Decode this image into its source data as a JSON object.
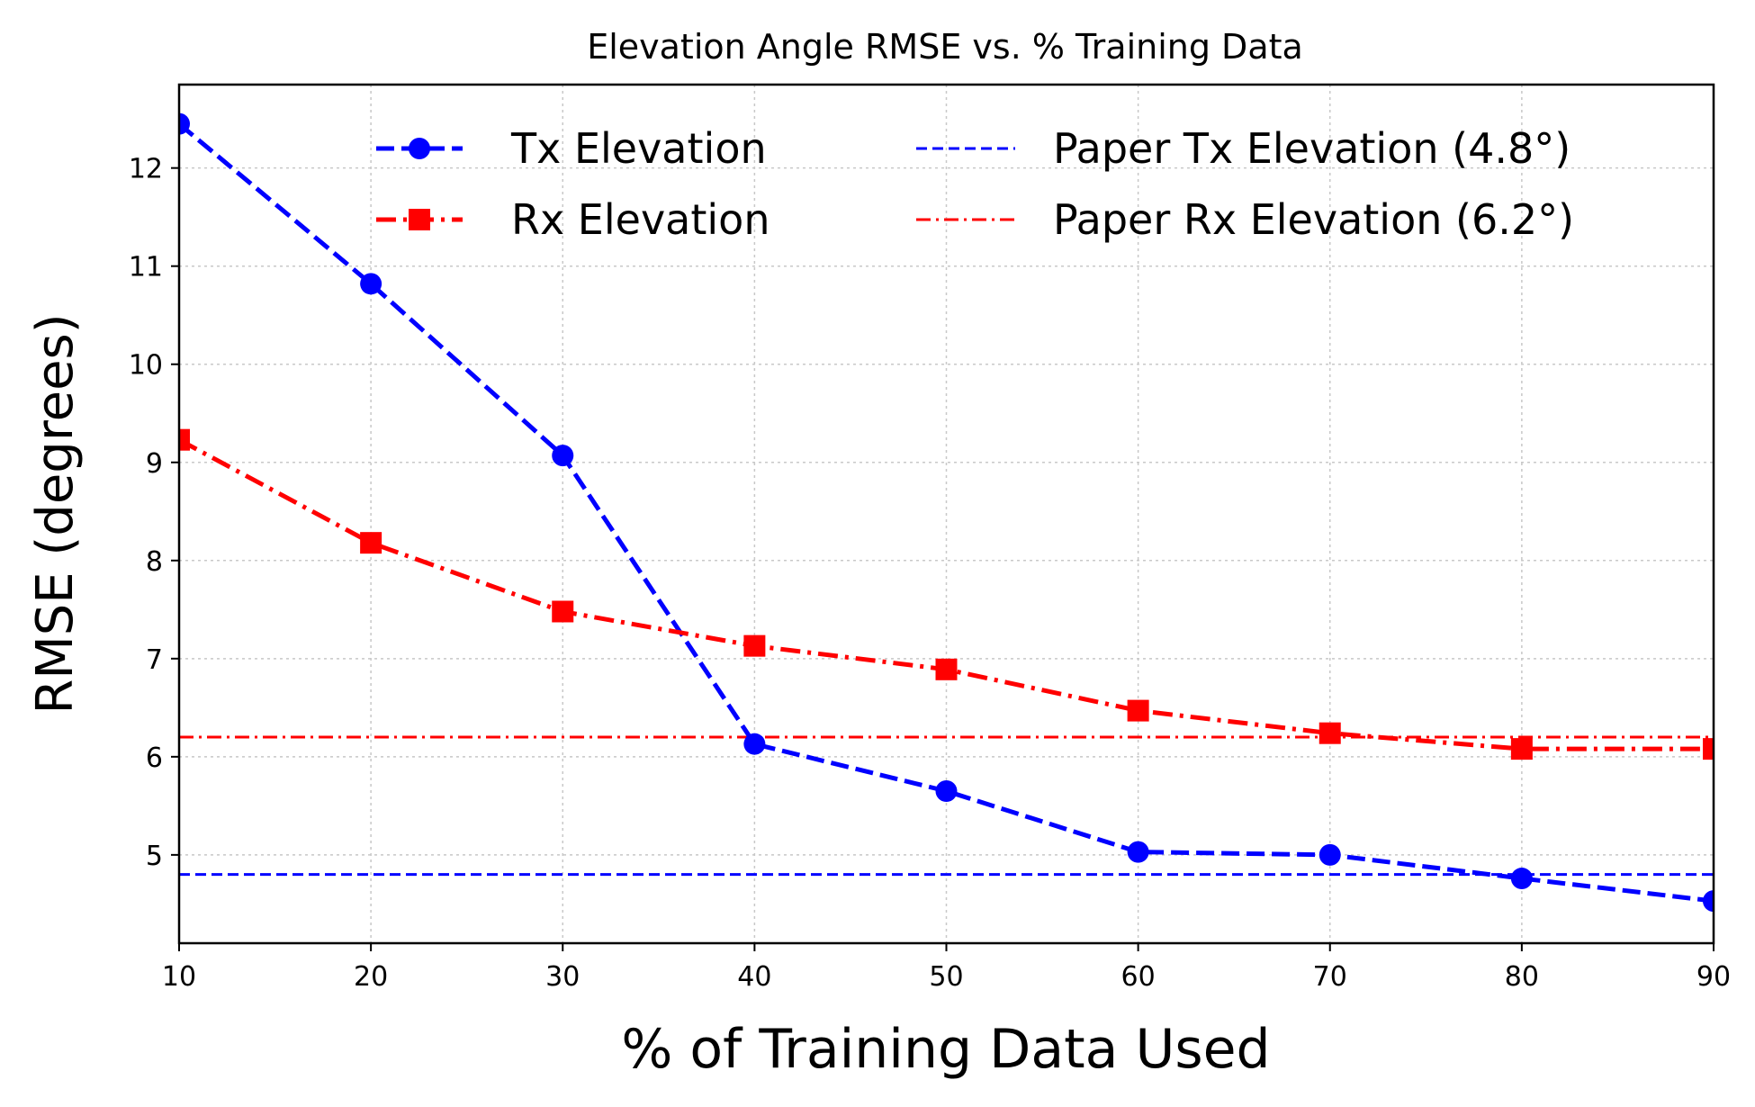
{
  "chart_data": {
    "type": "line",
    "title": "Elevation Angle RMSE vs. % Training Data",
    "xlabel": "% of Training Data Used",
    "ylabel": "RMSE (degrees)",
    "x": [
      10,
      20,
      30,
      40,
      50,
      60,
      70,
      80,
      90
    ],
    "xlim": [
      10,
      90
    ],
    "ylim": [
      4.1,
      12.85
    ],
    "xticks": [
      10,
      20,
      30,
      40,
      50,
      60,
      70,
      80,
      90
    ],
    "yticks": [
      5,
      6,
      7,
      8,
      9,
      10,
      11,
      12
    ],
    "grid": true,
    "legend_position": "top-right",
    "series": [
      {
        "name": "Tx Elevation",
        "color": "#0000ff",
        "marker": "circle",
        "linestyle": "dashed",
        "values": [
          12.45,
          10.82,
          9.07,
          6.13,
          5.65,
          5.03,
          5.0,
          4.76,
          4.53
        ]
      },
      {
        "name": "Rx Elevation",
        "color": "#ff0000",
        "marker": "square",
        "linestyle": "dashdot",
        "values": [
          9.23,
          8.18,
          7.48,
          7.13,
          6.89,
          6.47,
          6.24,
          6.08,
          6.08
        ]
      }
    ],
    "reference_lines": [
      {
        "name": "Paper Tx Elevation (4.8°)",
        "value": 4.8,
        "color": "#0000ff",
        "linestyle": "dashed"
      },
      {
        "name": "Paper Rx Elevation (6.2°)",
        "value": 6.2,
        "color": "#ff0000",
        "linestyle": "dashdot"
      }
    ]
  }
}
